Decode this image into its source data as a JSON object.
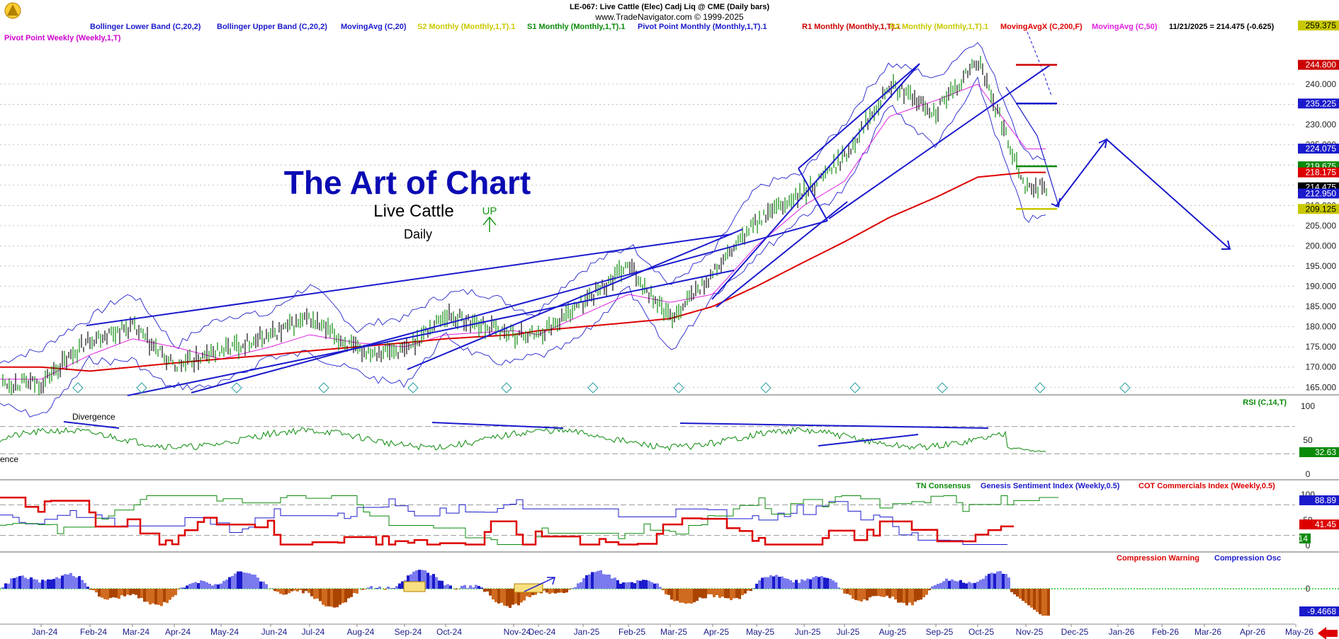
{
  "header": {
    "symbol_line": "LE-067:  Live Cattle (Elec) Cadj Liq @ CME  (Daily bars)",
    "copyright_line": "www.TradeNavigator.com © 1999-2025",
    "last_quote": "11/21/2025 = 214.475 (-0.625)"
  },
  "legend_main": [
    {
      "text": "Bollinger Lower Band (C,20,2)",
      "color": "#1a1acc"
    },
    {
      "text": "Bollinger Upper Band (C,20,2)",
      "color": "#1a1acc"
    },
    {
      "text": "MovingAvg (C,20)",
      "color": "#1a1acc"
    },
    {
      "text": "S2 Monthly (Monthly,1,T).1",
      "color": "#c8c800"
    },
    {
      "text": "S1 Monthly (Monthly,1,T).1",
      "color": "#0a8a0a"
    },
    {
      "text": "Pivot Point Monthly (Monthly,1,T).1",
      "color": "#1a1acc"
    },
    {
      "text": "R1 Monthly (Monthly,1,T).1",
      "color": "#cc0000"
    },
    {
      "text": "R2 Monthly (Monthly,1,T).1",
      "color": "#c8c800"
    },
    {
      "text": "MovingAvgX (C,200,F)",
      "color": "#dd0000"
    },
    {
      "text": "MovingAvg (C,50)",
      "color": "#e020e0"
    }
  ],
  "legend_weekly_pivot": {
    "text": "Pivot Point Weekly (Weekly,1,T)",
    "color": "#cc00cc"
  },
  "annotations": {
    "title": "The Art of Chart",
    "subtitle": "Live Cattle",
    "timeframe": "Daily",
    "up_label": "UP",
    "divergence": "Divergence",
    "divergence_cut": "ence"
  },
  "price_axis": {
    "ticks": [
      "240.000",
      "235.000",
      "230.000",
      "225.000",
      "220.000",
      "215.000",
      "210.000",
      "205.000",
      "200.000",
      "195.000",
      "190.000",
      "185.000",
      "180.000",
      "175.000",
      "170.000",
      "165.000"
    ],
    "boxes": [
      {
        "text": "259.375",
        "color": "#c8c800",
        "fg": "#000000",
        "value": 259.375
      },
      {
        "text": "244.800",
        "color": "#cc0000",
        "fg": "#ffffff",
        "value": 244.8
      },
      {
        "text": "235.225",
        "color": "#1a1acc",
        "fg": "#ffffff",
        "value": 235.225
      },
      {
        "text": "224.075",
        "color": "#1a1acc",
        "fg": "#ffffff",
        "value": 224.075
      },
      {
        "text": "219.675",
        "color": "#0a8a0a",
        "fg": "#ffffff",
        "value": 219.675
      },
      {
        "text": "218.175",
        "color": "#dd0000",
        "fg": "#ffffff",
        "value": 218.175
      },
      {
        "text": "214.475",
        "color": "#000000",
        "fg": "#ffffff",
        "value": 214.475
      },
      {
        "text": "212.950",
        "color": "#1a1acc",
        "fg": "#ffffff",
        "value": 212.95
      },
      {
        "text": "209.125",
        "color": "#c8c800",
        "fg": "#000000",
        "value": 209.125
      }
    ]
  },
  "rsi_panel": {
    "label": "RSI (C,14,T)",
    "ticks": [
      "100",
      "50",
      "0"
    ],
    "value": "32.63"
  },
  "sentiment_panel": {
    "legend": [
      {
        "text": "TN Consensus",
        "color": "#0a8a0a"
      },
      {
        "text": "Genesis Sentiment Index (Weekly,0.5)",
        "color": "#1a1acc"
      },
      {
        "text": "COT Commercials Index (Weekly,0.5)",
        "color": "#dd0000"
      }
    ],
    "ticks": [
      "100",
      "50",
      "0"
    ],
    "values": [
      {
        "text": "88.89",
        "color": "#1a1acc"
      },
      {
        "text": "41.45",
        "color": "#dd0000"
      },
      {
        "text": "14",
        "color": "#0a8a0a"
      }
    ]
  },
  "compression_panel": {
    "legend": [
      {
        "text": "Compression Warning",
        "color": "#dd0000"
      },
      {
        "text": "Compression Osc",
        "color": "#1a1acc"
      }
    ],
    "ticks": [
      "0"
    ],
    "value": "-9.4668"
  },
  "x_axis": {
    "months": [
      "Jan-24",
      "Feb-24",
      "Mar-24",
      "Apr-24",
      "May-24",
      "Jun-24",
      "Jul-24",
      "Aug-24",
      "Sep-24",
      "Oct-24",
      "Nov-24",
      "Dec-24",
      "Jan-25",
      "Feb-25",
      "Mar-25",
      "Apr-25",
      "May-25",
      "Jun-25",
      "Jul-25",
      "Aug-25",
      "Sep-25",
      "Oct-25",
      "Nov-25",
      "Dec-25",
      "Jan-26",
      "Feb-26",
      "Mar-26",
      "Apr-26",
      "May-26"
    ]
  },
  "chart_data": {
    "type": "line",
    "title": "LE-067:  Live Cattle (Elec) Cadj Liq @ CME  (Daily bars)",
    "x": [
      "Jan-24",
      "Feb-24",
      "Mar-24",
      "Apr-24",
      "May-24",
      "Jun-24",
      "Jul-24",
      "Aug-24",
      "Sep-24",
      "Oct-24",
      "Nov-24",
      "Dec-24",
      "Jan-25",
      "Feb-25",
      "Mar-25",
      "Apr-25",
      "May-25",
      "Jun-25",
      "Jul-25",
      "Aug-25",
      "Sep-25",
      "Oct-25",
      "Nov-25"
    ],
    "series": [
      {
        "name": "",
        "values": [
          166,
          177,
          180,
          170,
          174,
          178,
          182,
          174,
          174,
          183,
          178,
          178,
          186,
          195,
          182,
          193,
          206,
          213,
          222,
          240,
          233,
          246,
          214.475
        ]
      },
      {
        "name": "MovingAvgX (C,200,F)",
        "values": [
          170,
          169,
          170,
          171,
          172,
          173,
          174,
          175,
          176,
          177,
          178,
          179,
          180,
          181,
          182,
          185,
          190,
          196,
          201,
          207,
          212,
          217,
          218.175
        ]
      },
      {
        "name": "MovingAvg (C,50)",
        "values": [
          167,
          173,
          177,
          175,
          172,
          175,
          178,
          176,
          175,
          178,
          179,
          178,
          183,
          188,
          186,
          188,
          200,
          210,
          216,
          232,
          236,
          240,
          224
        ]
      }
    ],
    "ylim": [
      162.5,
      259.375
    ]
  }
}
